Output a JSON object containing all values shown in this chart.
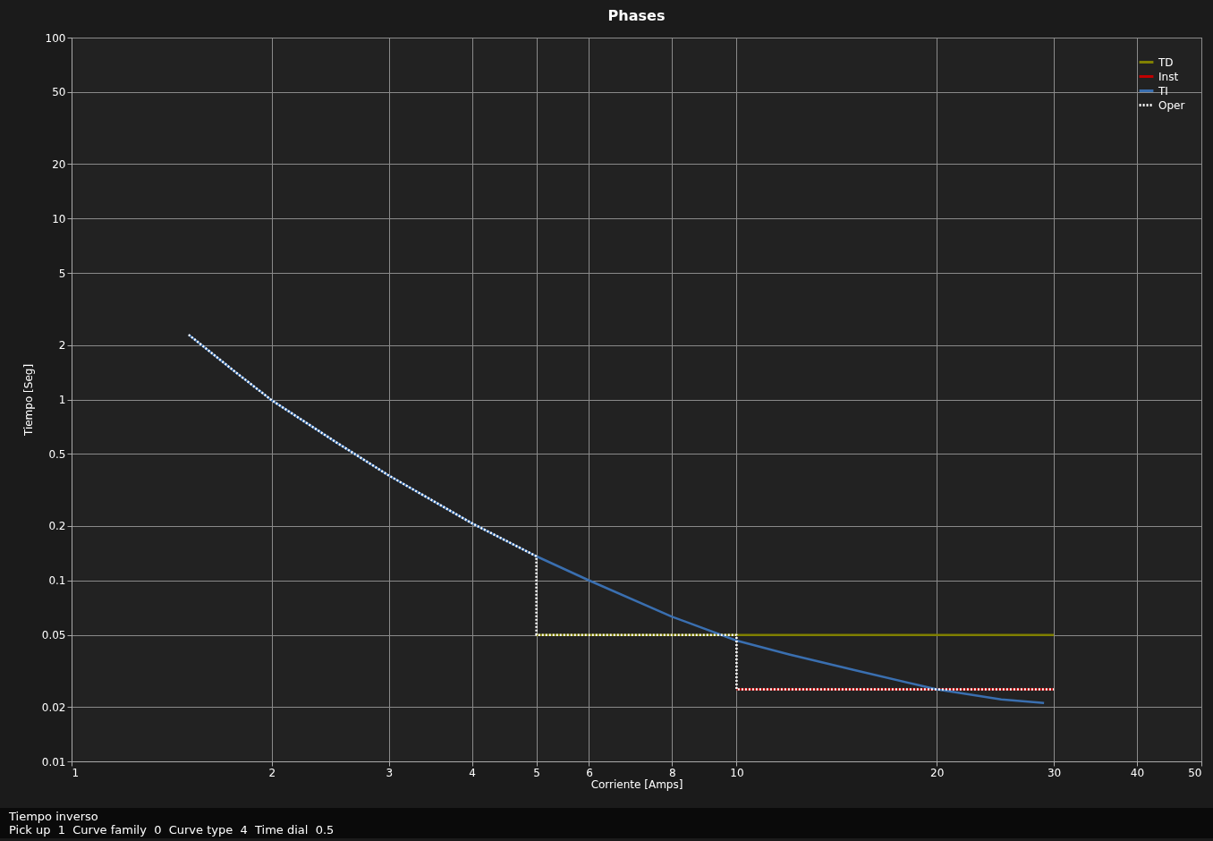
{
  "chart_data": {
    "type": "line",
    "title": "Phases",
    "xlabel": "Corriente [Amps]",
    "ylabel": "Tiempo [Seg]",
    "log": "xy",
    "grid": true,
    "legend": "top right",
    "marker": "none",
    "xlim": [
      1,
      50
    ],
    "xticks": [
      1,
      2,
      3,
      4,
      5,
      6,
      8,
      10,
      20,
      30,
      40,
      50
    ],
    "ylim": [
      0.01,
      100
    ],
    "yticks": [
      0.01,
      0.02,
      0.05,
      0.1,
      0.2,
      0.5,
      1,
      2,
      5,
      10,
      20,
      50,
      100
    ],
    "series": [
      {
        "name": "TD",
        "color": "#808000",
        "line_style": "solid",
        "x": [
          5,
          30
        ],
        "values": [
          0.05,
          0.05
        ]
      },
      {
        "name": "Inst",
        "color": "#c00000",
        "line_style": "solid",
        "x": [
          10,
          30
        ],
        "values": [
          0.025,
          0.025
        ]
      },
      {
        "name": "TI",
        "color": "#3a6fb0",
        "line_style": "solid",
        "x": [
          1.5,
          1.75,
          2,
          2.5,
          3,
          4,
          5,
          6,
          8,
          10,
          12,
          15,
          20,
          25,
          29
        ],
        "values": [
          2.28,
          1.45,
          0.99,
          0.58,
          0.38,
          0.207,
          0.136,
          0.1,
          0.063,
          0.0465,
          0.039,
          0.032,
          0.025,
          0.022,
          0.021
        ]
      },
      {
        "name": "Oper",
        "color": "#ffffff",
        "line_style": "dotted",
        "x": [
          1.5,
          1.75,
          2,
          2.5,
          3,
          4,
          5,
          5,
          10,
          10,
          30
        ],
        "values": [
          2.28,
          1.45,
          0.99,
          0.58,
          0.38,
          0.207,
          0.136,
          0.05,
          0.05,
          0.025,
          0.025
        ]
      }
    ],
    "annotations": [
      "Tiempo inverso",
      "Pick up  1  Curve family  0  Curve type  4  Time dial  0.5"
    ]
  }
}
